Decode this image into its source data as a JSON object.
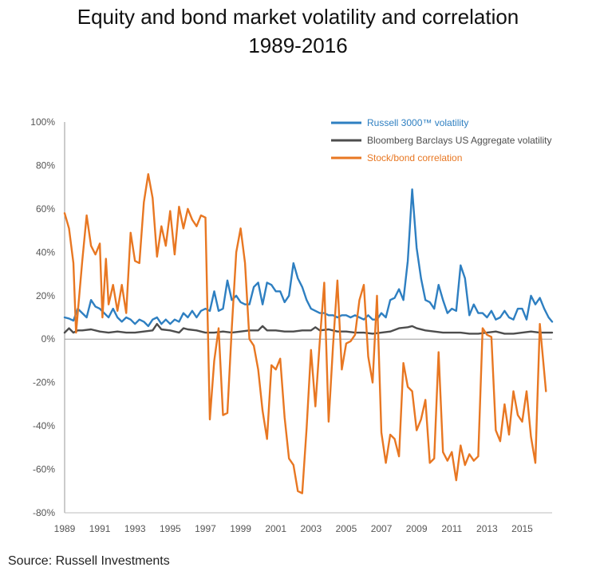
{
  "title_line1": "Equity and bond market volatility and correlation",
  "title_line2": "1989-2016",
  "source": "Source: Russell Investments",
  "chart_data": {
    "type": "line",
    "title": "Equity and bond market volatility and correlation 1989-2016",
    "xlabel": "",
    "ylabel": "",
    "xlim": [
      1989,
      2016.7
    ],
    "ylim": [
      -80,
      100
    ],
    "y_ticks": [
      100,
      80,
      60,
      40,
      20,
      0,
      -20,
      -40,
      -60,
      -80
    ],
    "y_tick_labels": [
      "100%",
      "80%",
      "60%",
      "40%",
      "20%",
      "0%",
      "-20%",
      "-40%",
      "-60%",
      "-80%"
    ],
    "x_ticks": [
      1989,
      1991,
      1993,
      1995,
      1997,
      1999,
      2001,
      2003,
      2005,
      2007,
      2009,
      2011,
      2013,
      2015
    ],
    "x_tick_labels": [
      "1989",
      "1991",
      "1993",
      "1995",
      "1997",
      "1999",
      "2001",
      "2003",
      "2005",
      "2007",
      "2009",
      "2011",
      "2013",
      "2015"
    ],
    "grid": false,
    "legend_position": "top-right",
    "series": [
      {
        "name": "Russell 3000™ volatility",
        "color": "#2E7FC1",
        "points": [
          [
            1989.0,
            10
          ],
          [
            1989.25,
            9.5
          ],
          [
            1989.5,
            8.5
          ],
          [
            1989.75,
            14
          ],
          [
            1990.0,
            12
          ],
          [
            1990.25,
            10
          ],
          [
            1990.5,
            18
          ],
          [
            1990.75,
            15
          ],
          [
            1991.0,
            14
          ],
          [
            1991.25,
            12
          ],
          [
            1991.5,
            10
          ],
          [
            1991.75,
            14
          ],
          [
            1992.0,
            10
          ],
          [
            1992.25,
            8
          ],
          [
            1992.5,
            10
          ],
          [
            1992.75,
            9
          ],
          [
            1993.0,
            7
          ],
          [
            1993.25,
            9
          ],
          [
            1993.5,
            8
          ],
          [
            1993.75,
            6
          ],
          [
            1994.0,
            9
          ],
          [
            1994.25,
            10
          ],
          [
            1994.5,
            7
          ],
          [
            1994.75,
            9
          ],
          [
            1995.0,
            7
          ],
          [
            1995.25,
            9
          ],
          [
            1995.5,
            8
          ],
          [
            1995.75,
            12
          ],
          [
            1996.0,
            10
          ],
          [
            1996.25,
            13
          ],
          [
            1996.5,
            10
          ],
          [
            1996.75,
            13
          ],
          [
            1997.0,
            14
          ],
          [
            1997.25,
            13
          ],
          [
            1997.5,
            22
          ],
          [
            1997.75,
            13
          ],
          [
            1998.0,
            14
          ],
          [
            1998.25,
            27
          ],
          [
            1998.5,
            18
          ],
          [
            1998.75,
            20
          ],
          [
            1999.0,
            17
          ],
          [
            1999.25,
            16
          ],
          [
            1999.5,
            16
          ],
          [
            1999.75,
            24
          ],
          [
            2000.0,
            26
          ],
          [
            2000.25,
            16
          ],
          [
            2000.5,
            26
          ],
          [
            2000.75,
            25
          ],
          [
            2001.0,
            22
          ],
          [
            2001.25,
            22
          ],
          [
            2001.5,
            17
          ],
          [
            2001.75,
            20
          ],
          [
            2002.0,
            35
          ],
          [
            2002.25,
            28
          ],
          [
            2002.5,
            24
          ],
          [
            2002.75,
            18
          ],
          [
            2003.0,
            14
          ],
          [
            2003.25,
            13
          ],
          [
            2003.5,
            12
          ],
          [
            2003.75,
            12
          ],
          [
            2004.0,
            11
          ],
          [
            2004.25,
            11
          ],
          [
            2004.5,
            10
          ],
          [
            2004.75,
            11
          ],
          [
            2005.0,
            11
          ],
          [
            2005.25,
            10
          ],
          [
            2005.5,
            11
          ],
          [
            2005.75,
            10
          ],
          [
            2006.0,
            9
          ],
          [
            2006.25,
            11
          ],
          [
            2006.5,
            9
          ],
          [
            2006.75,
            9
          ],
          [
            2007.0,
            12
          ],
          [
            2007.25,
            10
          ],
          [
            2007.5,
            18
          ],
          [
            2007.75,
            19
          ],
          [
            2008.0,
            23
          ],
          [
            2008.25,
            18
          ],
          [
            2008.5,
            36
          ],
          [
            2008.75,
            69
          ],
          [
            2009.0,
            42
          ],
          [
            2009.25,
            28
          ],
          [
            2009.5,
            18
          ],
          [
            2009.75,
            17
          ],
          [
            2010.0,
            14
          ],
          [
            2010.25,
            25
          ],
          [
            2010.5,
            18
          ],
          [
            2010.75,
            12
          ],
          [
            2011.0,
            14
          ],
          [
            2011.25,
            13
          ],
          [
            2011.5,
            34
          ],
          [
            2011.75,
            28
          ],
          [
            2012.0,
            11
          ],
          [
            2012.25,
            16
          ],
          [
            2012.5,
            12
          ],
          [
            2012.75,
            12
          ],
          [
            2013.0,
            10
          ],
          [
            2013.25,
            13
          ],
          [
            2013.5,
            9
          ],
          [
            2013.75,
            10
          ],
          [
            2014.0,
            13
          ],
          [
            2014.25,
            10
          ],
          [
            2014.5,
            9
          ],
          [
            2014.75,
            14
          ],
          [
            2015.0,
            14
          ],
          [
            2015.25,
            9
          ],
          [
            2015.5,
            20
          ],
          [
            2015.75,
            16
          ],
          [
            2016.0,
            19
          ],
          [
            2016.25,
            14
          ],
          [
            2016.5,
            10
          ],
          [
            2016.7,
            8
          ]
        ]
      },
      {
        "name": "Bloomberg Barclays US Aggregate volatility",
        "color": "#4D4D4D",
        "points": [
          [
            1989.0,
            3
          ],
          [
            1989.25,
            5
          ],
          [
            1989.5,
            3
          ],
          [
            1989.75,
            4
          ],
          [
            1990.0,
            4
          ],
          [
            1990.5,
            4.5
          ],
          [
            1991.0,
            3.5
          ],
          [
            1991.5,
            3
          ],
          [
            1992.0,
            3.5
          ],
          [
            1992.5,
            3
          ],
          [
            1993.0,
            3
          ],
          [
            1993.5,
            3.5
          ],
          [
            1994.0,
            4
          ],
          [
            1994.25,
            7
          ],
          [
            1994.5,
            4.5
          ],
          [
            1995.0,
            4
          ],
          [
            1995.5,
            3
          ],
          [
            1995.75,
            5
          ],
          [
            1996.0,
            4.5
          ],
          [
            1996.5,
            4
          ],
          [
            1997.0,
            3
          ],
          [
            1997.5,
            3
          ],
          [
            1998.0,
            3.5
          ],
          [
            1998.5,
            3
          ],
          [
            1999.0,
            3.5
          ],
          [
            1999.5,
            4
          ],
          [
            2000.0,
            4
          ],
          [
            2000.25,
            6
          ],
          [
            2000.5,
            4
          ],
          [
            2001.0,
            4
          ],
          [
            2001.5,
            3.5
          ],
          [
            2002.0,
            3.5
          ],
          [
            2002.5,
            4
          ],
          [
            2003.0,
            4
          ],
          [
            2003.25,
            5.5
          ],
          [
            2003.5,
            4
          ],
          [
            2004.0,
            4.5
          ],
          [
            2004.5,
            3.5
          ],
          [
            2005.0,
            3.5
          ],
          [
            2005.5,
            3
          ],
          [
            2006.0,
            3
          ],
          [
            2006.5,
            2.5
          ],
          [
            2007.0,
            3
          ],
          [
            2007.5,
            3.5
          ],
          [
            2008.0,
            5
          ],
          [
            2008.5,
            5.5
          ],
          [
            2008.75,
            6
          ],
          [
            2009.0,
            5
          ],
          [
            2009.5,
            4
          ],
          [
            2010.0,
            3.5
          ],
          [
            2010.5,
            3
          ],
          [
            2011.0,
            3
          ],
          [
            2011.5,
            3
          ],
          [
            2012.0,
            2.5
          ],
          [
            2012.5,
            2.5
          ],
          [
            2013.0,
            3
          ],
          [
            2013.5,
            3.5
          ],
          [
            2014.0,
            2.5
          ],
          [
            2014.5,
            2.5
          ],
          [
            2015.0,
            3
          ],
          [
            2015.5,
            3.5
          ],
          [
            2016.0,
            3
          ],
          [
            2016.5,
            3
          ],
          [
            2016.7,
            3
          ]
        ]
      },
      {
        "name": "Stock/bond correlation",
        "color": "#E87722",
        "points": [
          [
            1989.0,
            58
          ],
          [
            1989.25,
            51
          ],
          [
            1989.5,
            35
          ],
          [
            1989.65,
            3
          ],
          [
            1990.0,
            36
          ],
          [
            1990.25,
            57
          ],
          [
            1990.5,
            43
          ],
          [
            1990.75,
            39
          ],
          [
            1991.0,
            44
          ],
          [
            1991.15,
            10
          ],
          [
            1991.35,
            37
          ],
          [
            1991.5,
            16
          ],
          [
            1991.75,
            25
          ],
          [
            1992.0,
            13
          ],
          [
            1992.25,
            25
          ],
          [
            1992.5,
            12
          ],
          [
            1992.75,
            49
          ],
          [
            1993.0,
            36
          ],
          [
            1993.25,
            35
          ],
          [
            1993.5,
            63
          ],
          [
            1993.75,
            76
          ],
          [
            1994.0,
            65
          ],
          [
            1994.25,
            38
          ],
          [
            1994.5,
            52
          ],
          [
            1994.75,
            43
          ],
          [
            1995.0,
            59
          ],
          [
            1995.25,
            39
          ],
          [
            1995.5,
            61
          ],
          [
            1995.75,
            51
          ],
          [
            1996.0,
            60
          ],
          [
            1996.25,
            55
          ],
          [
            1996.5,
            52
          ],
          [
            1996.75,
            57
          ],
          [
            1997.0,
            56
          ],
          [
            1997.25,
            -37
          ],
          [
            1997.5,
            -10
          ],
          [
            1997.75,
            5
          ],
          [
            1998.0,
            -35
          ],
          [
            1998.25,
            -34
          ],
          [
            1998.5,
            5
          ],
          [
            1998.75,
            40
          ],
          [
            1999.0,
            51
          ],
          [
            1999.25,
            35
          ],
          [
            1999.5,
            0
          ],
          [
            1999.75,
            -3
          ],
          [
            2000.0,
            -14
          ],
          [
            2000.25,
            -33
          ],
          [
            2000.5,
            -46
          ],
          [
            2000.75,
            -12
          ],
          [
            2001.0,
            -14
          ],
          [
            2001.25,
            -9
          ],
          [
            2001.5,
            -36
          ],
          [
            2001.75,
            -55
          ],
          [
            2002.0,
            -58
          ],
          [
            2002.25,
            -70
          ],
          [
            2002.5,
            -71
          ],
          [
            2002.75,
            -41
          ],
          [
            2003.0,
            -5
          ],
          [
            2003.25,
            -31
          ],
          [
            2003.5,
            -1
          ],
          [
            2003.75,
            26
          ],
          [
            2004.0,
            -38
          ],
          [
            2004.25,
            -3
          ],
          [
            2004.5,
            27
          ],
          [
            2004.75,
            -14
          ],
          [
            2005.0,
            -2
          ],
          [
            2005.25,
            -1
          ],
          [
            2005.5,
            2
          ],
          [
            2005.75,
            18
          ],
          [
            2006.0,
            25
          ],
          [
            2006.25,
            -8
          ],
          [
            2006.5,
            -20
          ],
          [
            2006.75,
            20
          ],
          [
            2007.0,
            -43
          ],
          [
            2007.25,
            -57
          ],
          [
            2007.5,
            -44
          ],
          [
            2007.75,
            -46
          ],
          [
            2008.0,
            -54
          ],
          [
            2008.25,
            -11
          ],
          [
            2008.5,
            -22
          ],
          [
            2008.75,
            -24
          ],
          [
            2009.0,
            -42
          ],
          [
            2009.25,
            -37
          ],
          [
            2009.5,
            -28
          ],
          [
            2009.75,
            -57
          ],
          [
            2010.0,
            -55
          ],
          [
            2010.25,
            -6
          ],
          [
            2010.5,
            -52
          ],
          [
            2010.75,
            -56
          ],
          [
            2011.0,
            -52
          ],
          [
            2011.25,
            -65
          ],
          [
            2011.5,
            -49
          ],
          [
            2011.75,
            -58
          ],
          [
            2012.0,
            -53
          ],
          [
            2012.25,
            -56
          ],
          [
            2012.5,
            -54
          ],
          [
            2012.75,
            5
          ],
          [
            2013.0,
            2
          ],
          [
            2013.25,
            1
          ],
          [
            2013.5,
            -42
          ],
          [
            2013.75,
            -47
          ],
          [
            2014.0,
            -30
          ],
          [
            2014.25,
            -44
          ],
          [
            2014.5,
            -24
          ],
          [
            2014.75,
            -35
          ],
          [
            2015.0,
            -38
          ],
          [
            2015.25,
            -24
          ],
          [
            2015.5,
            -45
          ],
          [
            2015.75,
            -57
          ],
          [
            2016.0,
            7
          ],
          [
            2016.35,
            -24
          ]
        ]
      }
    ]
  }
}
